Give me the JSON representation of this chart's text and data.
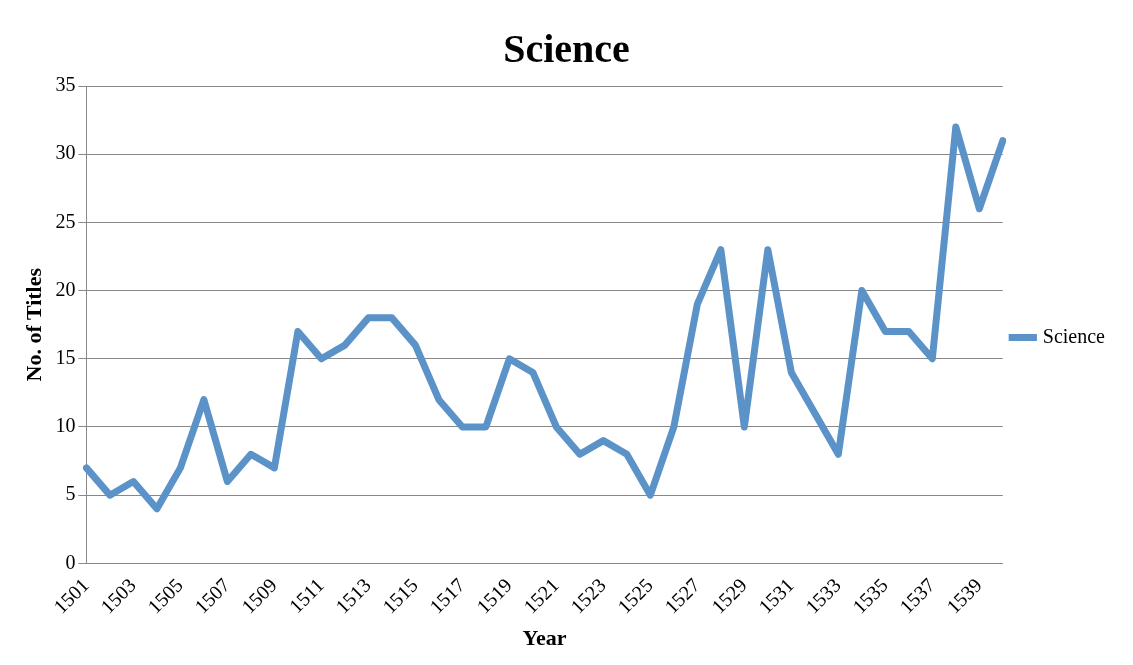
{
  "chart_data": {
    "type": "line",
    "title": "Science",
    "xlabel": "Year",
    "ylabel": "No. of Titles",
    "categories": [
      "1501",
      null,
      "1503",
      null,
      "1505",
      null,
      "1507",
      null,
      "1509",
      null,
      "1511",
      null,
      "1513",
      null,
      "1515",
      null,
      "1517",
      null,
      "1519",
      null,
      "1521",
      null,
      "1523",
      null,
      "1525",
      null,
      "1527",
      null,
      "1529",
      null,
      "1531",
      null,
      "1533",
      null,
      "1535",
      null,
      "1537",
      null,
      "1539",
      null
    ],
    "series": [
      {
        "name": "Science",
        "color": "#5b93c8",
        "values": [
          7,
          5,
          6,
          4,
          7,
          12,
          6,
          8,
          7,
          17,
          15,
          16,
          18,
          18,
          16,
          12,
          10,
          10,
          15,
          14,
          10,
          8,
          9,
          8,
          5,
          10,
          19,
          23,
          10,
          23,
          14,
          11,
          8,
          20,
          17,
          17,
          15,
          32,
          26,
          31
        ]
      }
    ],
    "ylim": [
      0,
      35
    ],
    "yticks": [
      0,
      5,
      10,
      15,
      20,
      25,
      30,
      35
    ],
    "grid": "y",
    "legend": "right",
    "marker": "none",
    "line_style": "solid"
  }
}
